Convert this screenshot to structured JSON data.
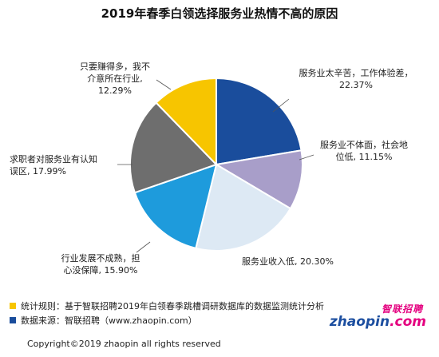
{
  "chart_data": {
    "type": "pie",
    "title": "2019年春季白领选择服务业热情不高的原因",
    "slices": [
      {
        "label": "服务业太辛苦，工作体验差",
        "value": 22.37,
        "display": "22.37%",
        "color": "#1a4d9c"
      },
      {
        "label": "服务业不体面，社会地位低",
        "value": 11.15,
        "display": "11.15%",
        "color": "#a89ec9"
      },
      {
        "label": "服务业收入低",
        "value": 20.3,
        "display": "20.30%",
        "color": "#dde9f4"
      },
      {
        "label": "行业发展不成熟，担心没保障",
        "value": 15.9,
        "display": "15.90%",
        "color": "#1e9bdc"
      },
      {
        "label": "求职者对服务业有认知误区",
        "value": 17.99,
        "display": "17.99%",
        "color": "#6e6e6e"
      },
      {
        "label": "只要赚得多，我不介意所在行业",
        "value": 12.29,
        "display": "12.29%",
        "color": "#f7c500"
      }
    ]
  },
  "labels": [
    {
      "line1": "服务业太辛苦，工作体验差，",
      "line2": "22.37%"
    },
    {
      "line1": "服务业不体面，社会地",
      "line2": "位低, 11.15%"
    },
    {
      "line1": "服务业收入低, 20.30%",
      "line2": ""
    },
    {
      "line1": "行业发展不成熟，担",
      "line2": "心没保障, 15.90%"
    },
    {
      "line1": "求职者对服务业有认知",
      "line2": "误区, 17.99%"
    },
    {
      "line1": "只要赚得多，我不",
      "line2": "介意所在行业,",
      "line3": "12.29%"
    }
  ],
  "footer": {
    "note1": "统计规则：基于智联招聘2019年白领春季跳槽调研数据库的数据监测统计分析",
    "note2": "数据来源：智联招聘（www.zhaopin.com）",
    "note1_color": "#f7c500",
    "note2_color": "#1a4d9c"
  },
  "logo": {
    "cn": "智联招聘",
    "en_main": "zhaopin",
    "en_suffix": ".com"
  },
  "copyright": "Copyright©2019 zhaopin all rights reserved"
}
